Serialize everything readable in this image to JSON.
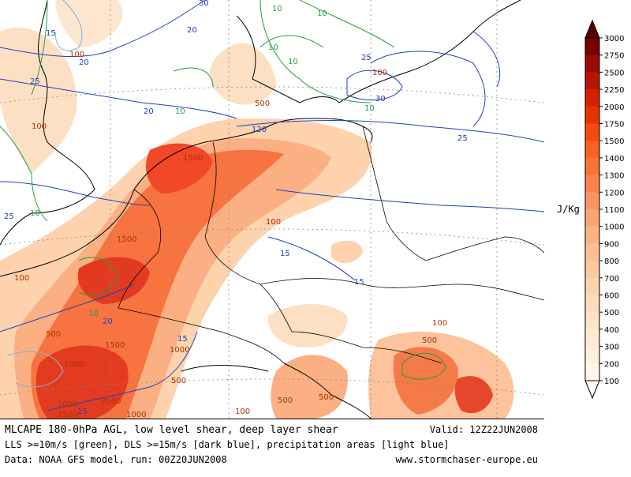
{
  "title_line": "MLCAPE 180-0hPa AGL, low level shear, deep layer shear",
  "valid": "Valid: 12Z22JUN2008",
  "legend_line": "LLS >=10m/s [green], DLS >=15m/s [dark blue], precipitation areas [light blue]",
  "data_line": "Data: NOAA GFS model, run: 00Z20JUN2008",
  "website": "www.stormchaser-europe.eu",
  "unit": "J/Kg",
  "colorbar": {
    "labels": [
      "3000",
      "2750",
      "2500",
      "2250",
      "2000",
      "1750",
      "1500",
      "1400",
      "1300",
      "1200",
      "1100",
      "1000",
      "900",
      "800",
      "700",
      "600",
      "500",
      "400",
      "300",
      "200",
      "100"
    ],
    "colors": [
      "#7a0000",
      "#9a0a00",
      "#b81500",
      "#d42200",
      "#e83300",
      "#f44a10",
      "#f76222",
      "#f8723a",
      "#f98350",
      "#fa9462",
      "#fba574",
      "#fbb383",
      "#fcbf92",
      "#fcc9a0",
      "#fdd3ad",
      "#fddcbb",
      "#fee4c8",
      "#fee9d2",
      "#fef0de",
      "#fff7ec"
    ]
  },
  "map_labels": {
    "cape": [
      "100",
      "100",
      "100",
      "500",
      "1500",
      "1500",
      "1500",
      "1000",
      "1000",
      "500",
      "500",
      "1000",
      "1500",
      "2000",
      "1000",
      "100",
      "500",
      "500",
      "100",
      "500",
      "100",
      "100"
    ],
    "green": [
      "10",
      "10",
      "10",
      "10",
      "10",
      "10",
      "10",
      "10"
    ],
    "blue": [
      "30",
      "20",
      "15",
      "20",
      "25",
      "25",
      "20",
      "120",
      "25",
      "15",
      "15",
      "20",
      "15",
      "15",
      "30",
      "25"
    ]
  }
}
